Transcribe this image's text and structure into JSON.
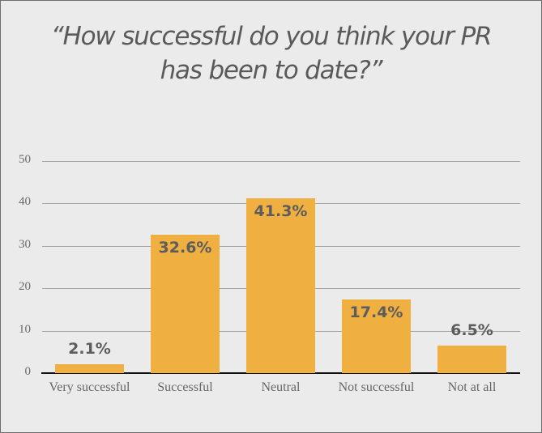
{
  "chart_data": {
    "type": "bar",
    "title": "“How successful do you think your PR has been to date?”",
    "title_lines": [
      "“How successful do you think your PR",
      "has been to date?”"
    ],
    "xlabel": "",
    "ylabel": "",
    "categories": [
      "Very successful",
      "Successful",
      "Neutral",
      "Not successful",
      "Not at all"
    ],
    "values": [
      2.1,
      32.6,
      41.3,
      17.4,
      6.5
    ],
    "data_labels": [
      "2.1%",
      "32.6%",
      "41.3%",
      "17.4%",
      "6.5%"
    ],
    "ylim": [
      0,
      50
    ],
    "yticks": [
      0,
      10,
      20,
      30,
      40,
      50
    ],
    "grid": true,
    "legend": null,
    "colors": {
      "bar": "#efb041",
      "background": "#ebebeb",
      "label_text": "#5c5c5c"
    }
  }
}
